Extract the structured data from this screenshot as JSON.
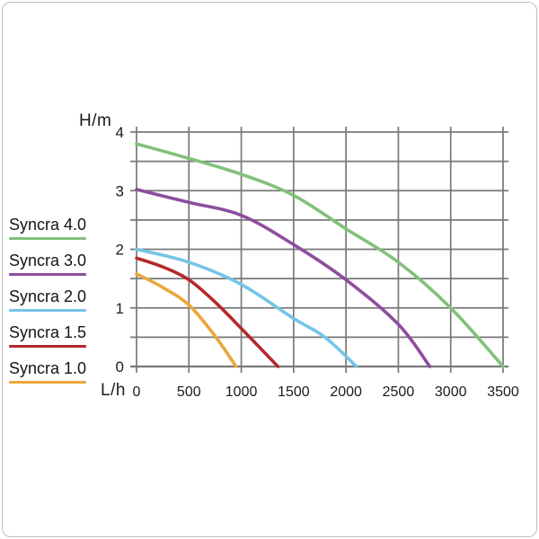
{
  "frame": {
    "border_color": "#bfbfbf",
    "background": "#ffffff"
  },
  "chart_data": {
    "type": "line",
    "title": "",
    "xlabel": "L/h",
    "ylabel": "H/m",
    "xlim": [
      0,
      3500
    ],
    "ylim": [
      0,
      4
    ],
    "x_ticks": [
      0,
      500,
      1000,
      1500,
      2000,
      2500,
      3000,
      3500
    ],
    "y_ticks": [
      0,
      1,
      2,
      3,
      4
    ],
    "grid": {
      "x_step": 500,
      "y_step": 0.5,
      "color": "#787878",
      "on": true
    },
    "legend_position": "left",
    "text_color": "#1b1b1b",
    "series": [
      {
        "name": "Syncra 4.0",
        "color": "#82C17A",
        "points": [
          [
            0,
            3.8
          ],
          [
            500,
            3.55
          ],
          [
            1000,
            3.28
          ],
          [
            1500,
            2.92
          ],
          [
            2000,
            2.35
          ],
          [
            2500,
            1.78
          ],
          [
            3000,
            1.0
          ],
          [
            3500,
            0
          ]
        ]
      },
      {
        "name": "Syncra 3.0",
        "color": "#8E4D9E",
        "points": [
          [
            0,
            3.02
          ],
          [
            500,
            2.8
          ],
          [
            1000,
            2.58
          ],
          [
            1500,
            2.08
          ],
          [
            2000,
            1.48
          ],
          [
            2500,
            0.72
          ],
          [
            2800,
            0
          ]
        ]
      },
      {
        "name": "Syncra 2.0",
        "color": "#74C5E8",
        "points": [
          [
            0,
            2.0
          ],
          [
            500,
            1.78
          ],
          [
            1000,
            1.4
          ],
          [
            1500,
            0.82
          ],
          [
            1800,
            0.5
          ],
          [
            2100,
            0
          ]
        ]
      },
      {
        "name": "Syncra 1.5",
        "color": "#B22A2A",
        "points": [
          [
            0,
            1.85
          ],
          [
            250,
            1.7
          ],
          [
            500,
            1.48
          ],
          [
            750,
            1.1
          ],
          [
            1000,
            0.65
          ],
          [
            1350,
            0
          ]
        ]
      },
      {
        "name": "Syncra 1.0",
        "color": "#EAA73C",
        "points": [
          [
            0,
            1.58
          ],
          [
            250,
            1.35
          ],
          [
            500,
            1.05
          ],
          [
            750,
            0.52
          ],
          [
            950,
            0
          ]
        ]
      }
    ]
  }
}
